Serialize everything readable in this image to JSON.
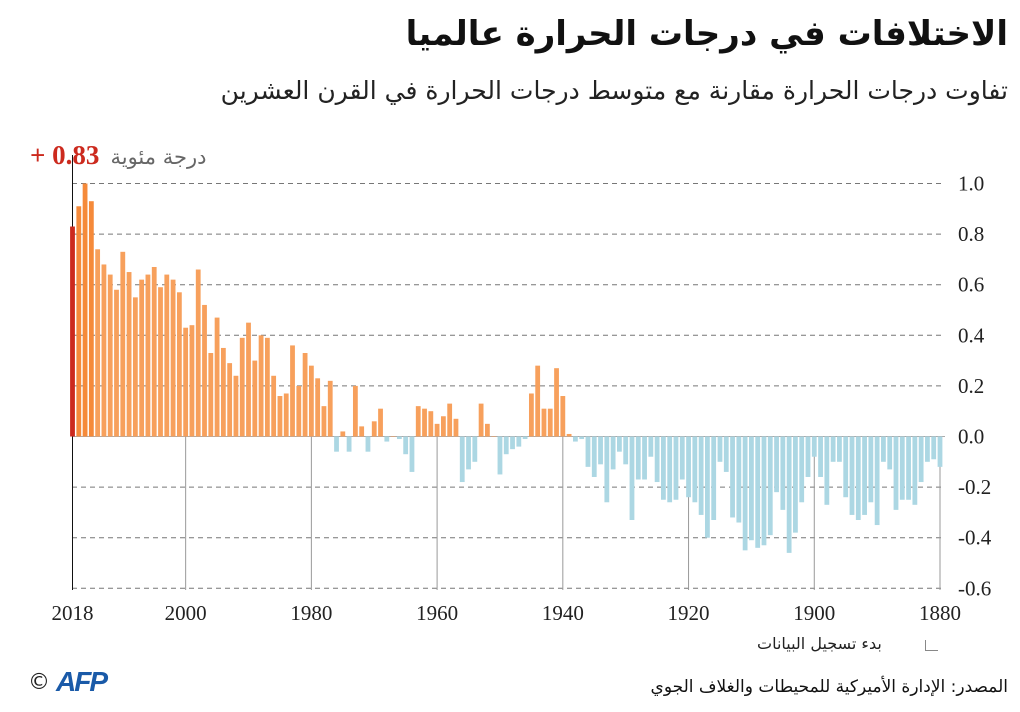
{
  "header": {
    "title": "الاختلافات في درجات الحرارة عالميا",
    "subtitle": "تفاوت درجات الحرارة مقارنة مع متوسط درجات الحرارة في القرن العشرين"
  },
  "latest_label": {
    "value": "+ 0.83",
    "unit": "درجة مئوية"
  },
  "footer": {
    "note": "بدء تسجيل البيانات",
    "source": "المصدر: الإدارة الأميركية للمحيطات والغلاف الجوي",
    "copyright": "©",
    "logo": "AFP"
  },
  "colors": {
    "latest": "#cc2a1e",
    "positive": "#f7a05c",
    "positive_recent": "#f58a3a",
    "negative": "#acd7e3"
  },
  "chart_data": {
    "type": "bar",
    "title": "الاختلافات في درجات الحرارة عالميا",
    "ylabel": "درجة مئوية",
    "ylim": [
      -0.6,
      1.0
    ],
    "y_ticks": [
      "1.0",
      "0.8",
      "0.6",
      "0.4",
      "0.2",
      "0.0",
      "-0.2",
      "-0.4",
      "-0.6"
    ],
    "y_tick_values": [
      1.0,
      0.8,
      0.6,
      0.4,
      0.2,
      0.0,
      -0.2,
      -0.4,
      -0.6
    ],
    "x_ticks": [
      "2018",
      "2000",
      "1980",
      "1960",
      "1940",
      "1920",
      "1900",
      "1880"
    ],
    "x_axis_reversed": true,
    "grid": true,
    "x": [
      2018,
      2017,
      2016,
      2015,
      2014,
      2013,
      2012,
      2011,
      2010,
      2009,
      2008,
      2007,
      2006,
      2005,
      2004,
      2003,
      2002,
      2001,
      2000,
      1999,
      1998,
      1997,
      1996,
      1995,
      1994,
      1993,
      1992,
      1991,
      1990,
      1989,
      1988,
      1987,
      1986,
      1985,
      1984,
      1983,
      1982,
      1981,
      1980,
      1979,
      1978,
      1977,
      1976,
      1975,
      1974,
      1973,
      1972,
      1971,
      1970,
      1969,
      1968,
      1967,
      1966,
      1965,
      1964,
      1963,
      1962,
      1961,
      1960,
      1959,
      1958,
      1957,
      1956,
      1955,
      1954,
      1953,
      1952,
      1951,
      1950,
      1949,
      1948,
      1947,
      1946,
      1945,
      1944,
      1943,
      1942,
      1941,
      1940,
      1939,
      1938,
      1937,
      1936,
      1935,
      1934,
      1933,
      1932,
      1931,
      1930,
      1929,
      1928,
      1927,
      1926,
      1925,
      1924,
      1923,
      1922,
      1921,
      1920,
      1919,
      1918,
      1917,
      1916,
      1915,
      1914,
      1913,
      1912,
      1911,
      1910,
      1909,
      1908,
      1907,
      1906,
      1905,
      1904,
      1903,
      1902,
      1901,
      1900,
      1899,
      1898,
      1897,
      1896,
      1895,
      1894,
      1893,
      1892,
      1891,
      1890,
      1889,
      1888,
      1887,
      1886,
      1885,
      1884,
      1883,
      1882,
      1881,
      1880
    ],
    "values": [
      0.83,
      0.91,
      1.0,
      0.93,
      0.74,
      0.68,
      0.64,
      0.58,
      0.73,
      0.65,
      0.55,
      0.62,
      0.64,
      0.67,
      0.59,
      0.64,
      0.62,
      0.57,
      0.43,
      0.44,
      0.66,
      0.52,
      0.33,
      0.47,
      0.35,
      0.29,
      0.24,
      0.39,
      0.45,
      0.3,
      0.4,
      0.39,
      0.24,
      0.16,
      0.17,
      0.36,
      0.2,
      0.33,
      0.28,
      0.23,
      0.12,
      0.22,
      -0.06,
      0.02,
      -0.06,
      0.2,
      0.04,
      -0.06,
      0.06,
      0.11,
      -0.02,
      0.0,
      -0.01,
      -0.07,
      -0.14,
      0.12,
      0.11,
      0.1,
      0.05,
      0.08,
      0.13,
      0.07,
      -0.18,
      -0.13,
      -0.1,
      0.13,
      0.05,
      0.0,
      -0.15,
      -0.07,
      -0.05,
      -0.04,
      -0.01,
      0.17,
      0.28,
      0.11,
      0.11,
      0.27,
      0.16,
      0.01,
      -0.02,
      -0.01,
      -0.12,
      -0.16,
      -0.11,
      -0.26,
      -0.13,
      -0.06,
      -0.11,
      -0.33,
      -0.17,
      -0.17,
      -0.08,
      -0.18,
      -0.25,
      -0.26,
      -0.25,
      -0.17,
      -0.24,
      -0.26,
      -0.31,
      -0.4,
      -0.33,
      -0.1,
      -0.14,
      -0.32,
      -0.34,
      -0.45,
      -0.41,
      -0.44,
      -0.43,
      -0.39,
      -0.22,
      -0.29,
      -0.46,
      -0.38,
      -0.26,
      -0.16,
      -0.08,
      -0.16,
      -0.27,
      -0.1,
      -0.1,
      -0.24,
      -0.31,
      -0.33,
      -0.31,
      -0.26,
      -0.35,
      -0.1,
      -0.13,
      -0.29,
      -0.25,
      -0.25,
      -0.27,
      -0.18,
      -0.1,
      -0.09,
      -0.12
    ]
  }
}
